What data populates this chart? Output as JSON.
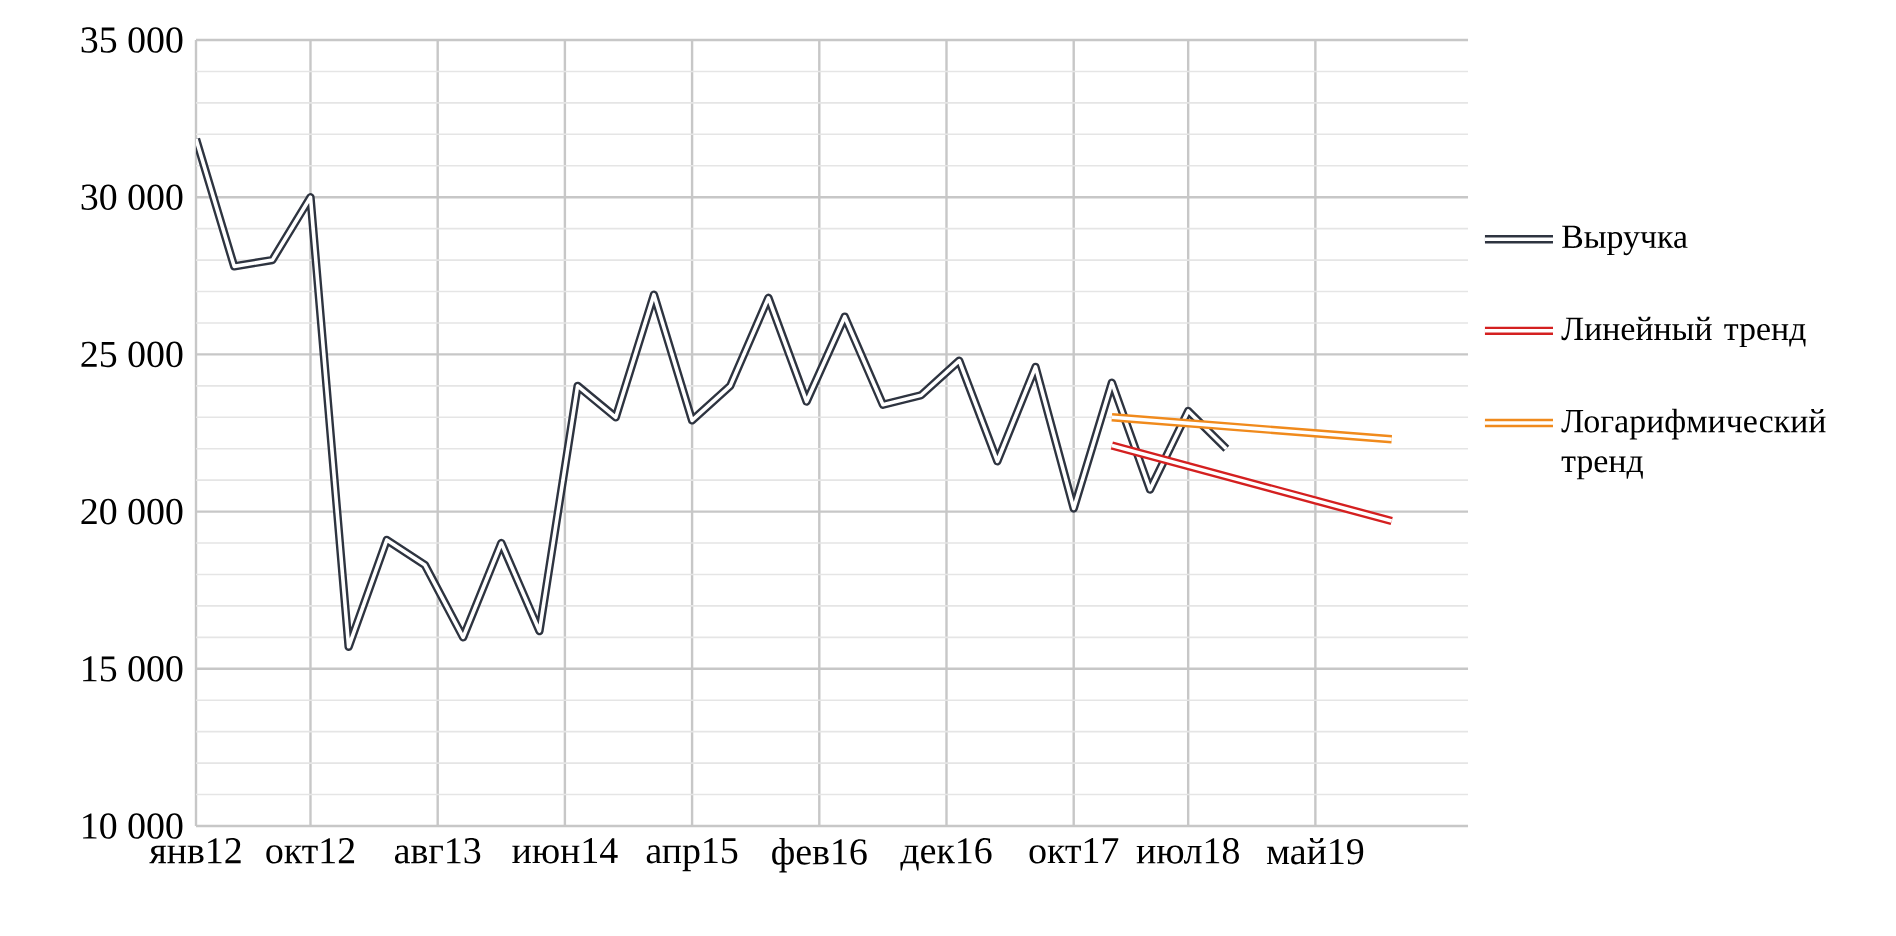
{
  "chart_data": {
    "type": "line",
    "xlim": [
      "2012-01",
      "2020-05"
    ],
    "ylim": [
      10000,
      35000
    ],
    "xticks": [
      {
        "value": "2012-01",
        "label": "янв12"
      },
      {
        "value": "2012-10",
        "label": "окт12"
      },
      {
        "value": "2013-08",
        "label": "авг13"
      },
      {
        "value": "2014-06",
        "label": "июн14"
      },
      {
        "value": "2015-04",
        "label": "апр15"
      },
      {
        "value": "2016-02",
        "label": "фев16"
      },
      {
        "value": "2016-12",
        "label": "дек16"
      },
      {
        "value": "2017-10",
        "label": "окт17"
      },
      {
        "value": "2018-07",
        "label": "июл18"
      },
      {
        "value": "2019-05",
        "label": "май19"
      }
    ],
    "yticks": [
      {
        "value": 10000,
        "label": "10 000"
      },
      {
        "value": 15000,
        "label": "15 000"
      },
      {
        "value": 20000,
        "label": "20 000"
      },
      {
        "value": 25000,
        "label": "25 000"
      },
      {
        "value": 30000,
        "label": "30 000"
      },
      {
        "value": 35000,
        "label": "35 000"
      }
    ],
    "grid": true,
    "legend": "right",
    "marker": "none",
    "line_style": "solid",
    "series": [
      {
        "name": "Выручка",
        "color": "#2e3440",
        "x": [
          "2012-01",
          "2012-04",
          "2012-07",
          "2012-10",
          "2013-01",
          "2013-04",
          "2013-07",
          "2013-10",
          "2014-01",
          "2014-04",
          "2014-07",
          "2014-10",
          "2015-01",
          "2015-04",
          "2015-07",
          "2015-10",
          "2016-01",
          "2016-04",
          "2016-07",
          "2016-10",
          "2017-01",
          "2017-04",
          "2017-07",
          "2017-10",
          "2018-01",
          "2018-04",
          "2018-07",
          "2018-10"
        ],
        "values": [
          31850,
          27800,
          28000,
          30000,
          15700,
          19100,
          18300,
          16000,
          19000,
          16200,
          24000,
          23000,
          26900,
          22900,
          24000,
          26800,
          23500,
          26200,
          23400,
          23700,
          24800,
          21600,
          24600,
          20100,
          24100,
          20700,
          23200,
          22000
        ]
      },
      {
        "name": "Линейный тренд",
        "color": "#d42020",
        "x": [
          "2018-01",
          "2019-11"
        ],
        "values": [
          22100,
          19700
        ]
      },
      {
        "name": "Логарифмический тренд",
        "color": "#f08a1c",
        "x": [
          "2018-01",
          "2019-11"
        ],
        "values": [
          23000,
          22300
        ]
      }
    ]
  }
}
